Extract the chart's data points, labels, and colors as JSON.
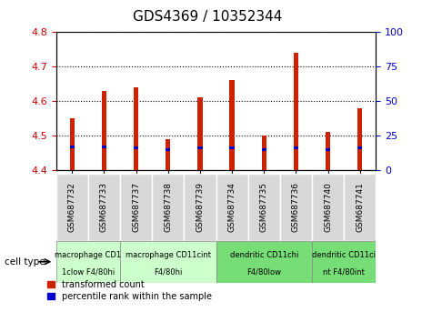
{
  "title": "GDS4369 / 10352344",
  "samples": [
    "GSM687732",
    "GSM687733",
    "GSM687737",
    "GSM687738",
    "GSM687739",
    "GSM687734",
    "GSM687735",
    "GSM687736",
    "GSM687740",
    "GSM687741"
  ],
  "transformed_counts": [
    4.55,
    4.63,
    4.64,
    4.49,
    4.61,
    4.66,
    4.5,
    4.74,
    4.51,
    4.58
  ],
  "percentile_ranks_pct": [
    17,
    17,
    16,
    15,
    16,
    16,
    15,
    16,
    15,
    16
  ],
  "ylim_left": [
    4.4,
    4.8
  ],
  "ylim_right": [
    0,
    100
  ],
  "yticks_left": [
    4.4,
    4.5,
    4.6,
    4.7,
    4.8
  ],
  "yticks_right": [
    0,
    25,
    50,
    75,
    100
  ],
  "bar_bottom": 4.4,
  "bar_color_red": "#cc2200",
  "bar_color_blue": "#0000cc",
  "grid_color": "#000000",
  "background_color": "#ffffff",
  "chart_bg": "#ffffff",
  "tick_label_color_left": "#cc0000",
  "tick_label_color_right": "#0000cc",
  "cell_groups": [
    {
      "indices": [
        0,
        1
      ],
      "line1": "macrophage CD1",
      "line2": "1clow F4/80hi",
      "color": "#ccffcc"
    },
    {
      "indices": [
        2,
        3,
        4
      ],
      "line1": "macrophage CD11cint",
      "line2": "F4/80hi",
      "color": "#ccffcc"
    },
    {
      "indices": [
        5,
        6,
        7
      ],
      "line1": "dendritic CD11chi",
      "line2": "F4/80low",
      "color": "#77dd77"
    },
    {
      "indices": [
        8,
        9
      ],
      "line1": "dendritic CD11ci",
      "line2": "nt F4/80int",
      "color": "#77dd77"
    }
  ]
}
